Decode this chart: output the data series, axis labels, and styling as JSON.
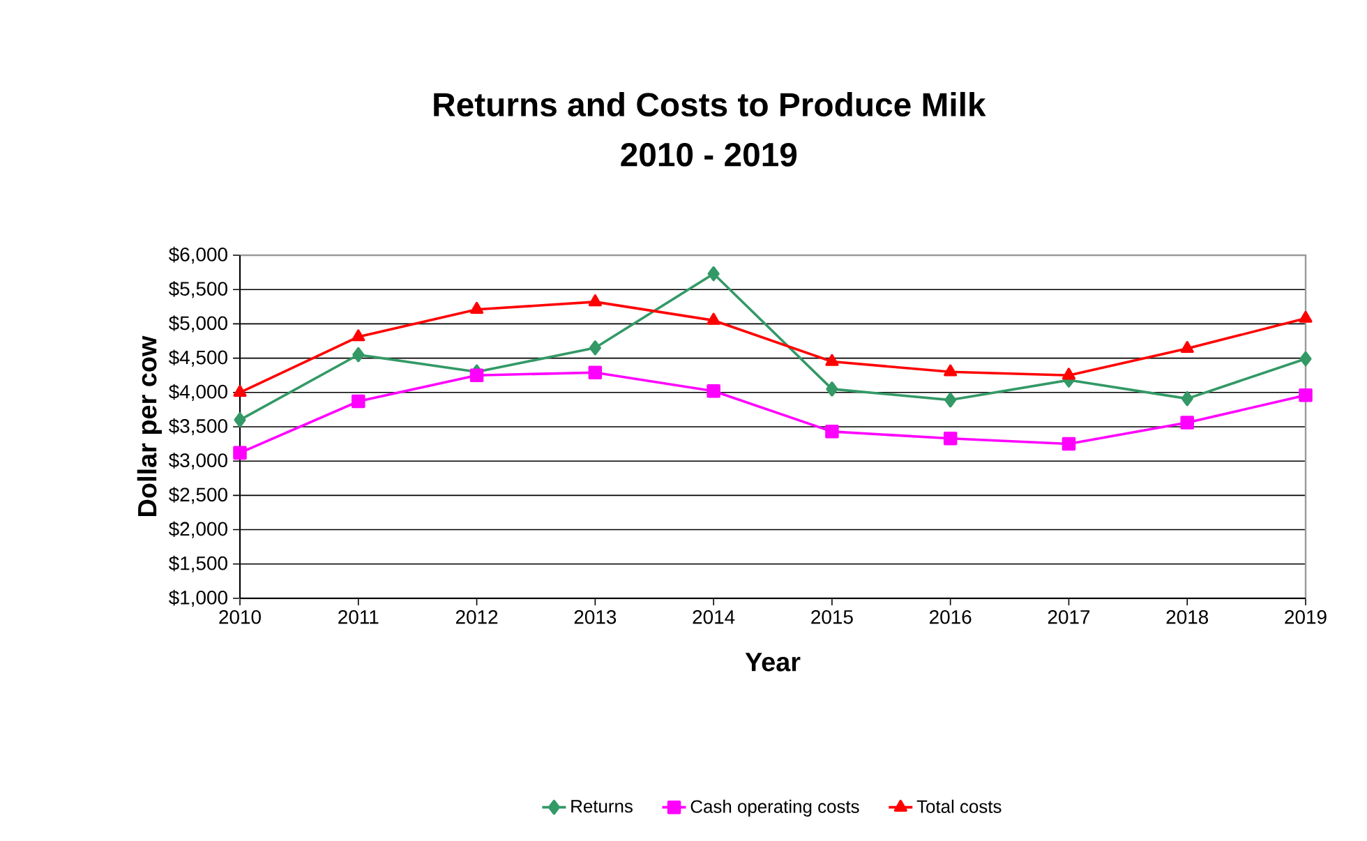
{
  "chart_data": {
    "type": "line",
    "title": "Returns and Costs to Produce Milk",
    "subtitle": "2010 - 2019",
    "xlabel": "Year",
    "ylabel": "Dollar per cow",
    "categories": [
      "2010",
      "2011",
      "2012",
      "2013",
      "2014",
      "2015",
      "2016",
      "2017",
      "2018",
      "2019"
    ],
    "ylim": [
      1000,
      6000
    ],
    "yticks": [
      {
        "value": 1000,
        "label": "$1,000"
      },
      {
        "value": 1500,
        "label": "$1,500"
      },
      {
        "value": 2000,
        "label": "$2,000"
      },
      {
        "value": 2500,
        "label": "$2,500"
      },
      {
        "value": 3000,
        "label": "$3,000"
      },
      {
        "value": 3500,
        "label": "$3,500"
      },
      {
        "value": 4000,
        "label": "$4,000"
      },
      {
        "value": 4500,
        "label": "$4,500"
      },
      {
        "value": 5000,
        "label": "$5,000"
      },
      {
        "value": 5500,
        "label": "$5,500"
      },
      {
        "value": 6000,
        "label": "$6,000"
      }
    ],
    "series": [
      {
        "name": "Returns",
        "color": "#339966",
        "marker": "diamond",
        "values": [
          3600,
          4550,
          4300,
          4650,
          5730,
          4050,
          3890,
          4180,
          3910,
          4490
        ]
      },
      {
        "name": "Cash operating costs",
        "color": "#ff00ff",
        "marker": "square",
        "values": [
          3120,
          3870,
          4250,
          4290,
          4020,
          3430,
          3330,
          3250,
          3560,
          3960
        ]
      },
      {
        "name": "Total costs",
        "color": "#ff0000",
        "marker": "triangle",
        "values": [
          4000,
          4810,
          5210,
          5320,
          5050,
          4450,
          4300,
          4250,
          4640,
          5080
        ]
      }
    ],
    "grid": "y",
    "legend": "bottom",
    "line_style": "solid"
  }
}
